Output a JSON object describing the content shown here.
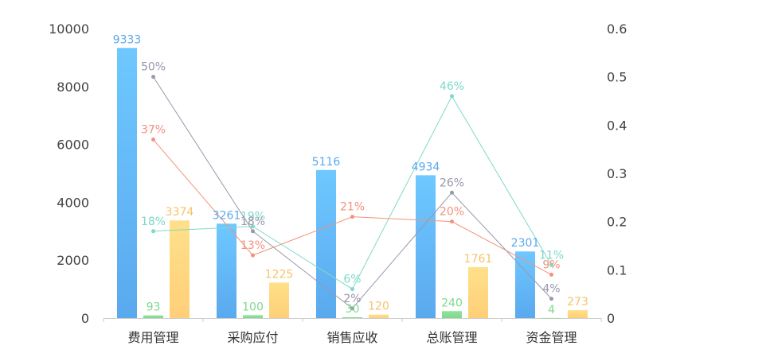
{
  "chart_data": {
    "type": "bar",
    "categories": [
      "费用管理",
      "采购应付",
      "销售应收",
      "总账管理",
      "资金管理"
    ],
    "series": [
      {
        "type": "bar",
        "axis": "left",
        "values": [
          9333,
          3261,
          5116,
          4934,
          2301
        ],
        "color_top": "#6ec8ff",
        "color_bottom": "#5aa9ee",
        "label_color": "#5aa9ee"
      },
      {
        "type": "bar",
        "axis": "left",
        "values": [
          93,
          100,
          30,
          240,
          4
        ],
        "color_top": "#8ee39a",
        "color_bottom": "#7fd98d",
        "label_color": "#7fd98d"
      },
      {
        "type": "bar",
        "axis": "left",
        "values": [
          3374,
          1225,
          120,
          1761,
          273
        ],
        "color_top": "#ffe08a",
        "color_bottom": "#ffcf78",
        "label_color": "#f6c46a"
      },
      {
        "type": "line",
        "axis": "right",
        "values": [
          0.37,
          0.13,
          0.21,
          0.2,
          0.09
        ],
        "labels": [
          "37%",
          "13%",
          "21%",
          "20%",
          "9%"
        ],
        "color": "#f2927c"
      },
      {
        "type": "line",
        "axis": "right",
        "values": [
          0.18,
          0.19,
          0.06,
          0.46,
          0.11
        ],
        "labels": [
          "18%",
          "19%",
          "6%",
          "46%",
          "11%"
        ],
        "color": "#7ed9c9"
      },
      {
        "type": "line",
        "axis": "right",
        "values": [
          0.5,
          0.18,
          0.02,
          0.26,
          0.04
        ],
        "labels": [
          "50%",
          "18%",
          "2%",
          "26%",
          "4%"
        ],
        "color": "#9a97ad"
      }
    ],
    "y_left": {
      "min": 0,
      "max": 10000,
      "ticks": [
        0,
        2000,
        4000,
        6000,
        8000,
        10000
      ]
    },
    "y_right": {
      "min": 0,
      "max": 0.6,
      "ticks": [
        "0",
        "0.1",
        "0.2",
        "0.3",
        "0.4",
        "0.5",
        "0.6"
      ]
    },
    "grid": false,
    "legend": "none"
  }
}
